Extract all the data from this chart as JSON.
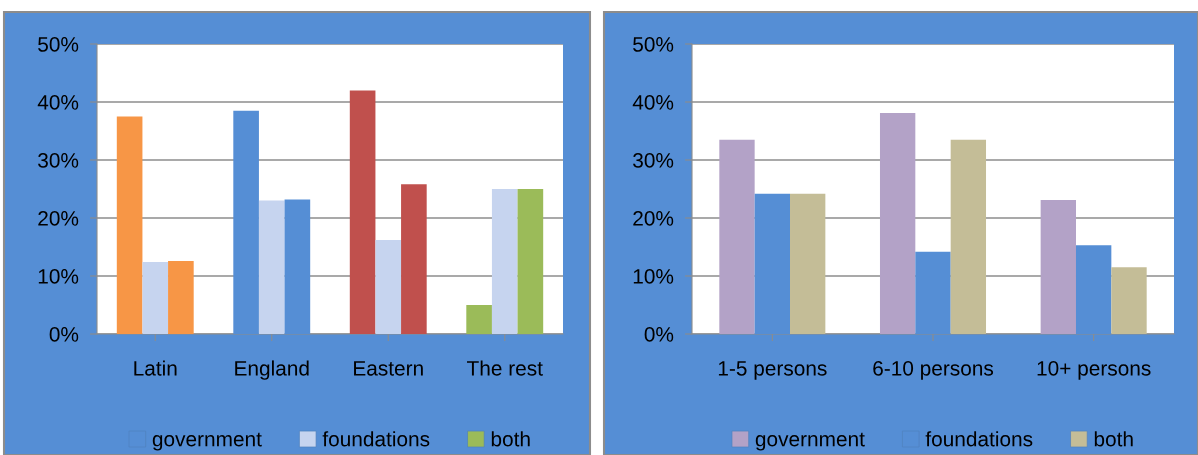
{
  "chart_data": [
    {
      "type": "bar",
      "categories": [
        "Latin",
        "England",
        "Eastern",
        "The rest"
      ],
      "series": [
        {
          "name": "government",
          "color": "#558ed5",
          "colors": [
            "#f79646",
            "#558ed5",
            "#c0504d",
            "#9bbb59"
          ],
          "values": [
            37.5,
            38.5,
            42.0,
            5.0
          ]
        },
        {
          "name": "foundations",
          "color": "#c6d4ef",
          "colors": [
            "#c6d4ef",
            "#c6d4ef",
            "#c6d4ef",
            "#c6d4ef"
          ],
          "values": [
            12.4,
            23.0,
            16.2,
            25.0
          ]
        },
        {
          "name": "both",
          "color": "#9bbb59",
          "colors": [
            "#f79646",
            "#558ed5",
            "#c0504d",
            "#9bbb59"
          ],
          "values": [
            12.6,
            23.2,
            25.8,
            25.0
          ]
        }
      ],
      "ylim": [
        0,
        50
      ],
      "yticks": [
        {
          "value": 0,
          "label": "0%"
        },
        {
          "value": 10,
          "label": "10%"
        },
        {
          "value": 20,
          "label": "20%"
        },
        {
          "value": 30,
          "label": "30%"
        },
        {
          "value": 40,
          "label": "40%"
        },
        {
          "value": 50,
          "label": "50%"
        }
      ],
      "grid": "y",
      "legend": "bottom"
    },
    {
      "type": "bar",
      "categories": [
        "1-5 persons",
        "6-10 persons",
        "10+ persons"
      ],
      "series": [
        {
          "name": "government",
          "color": "#b3a2c7",
          "values": [
            33.5,
            38.1,
            23.1
          ]
        },
        {
          "name": "foundations",
          "color": "#558ed5",
          "values": [
            24.2,
            14.2,
            15.3
          ]
        },
        {
          "name": "both",
          "color": "#c4bd97",
          "values": [
            24.2,
            33.5,
            11.5
          ]
        }
      ],
      "ylim": [
        0,
        50
      ],
      "yticks": [
        {
          "value": 0,
          "label": "0%"
        },
        {
          "value": 10,
          "label": "10%"
        },
        {
          "value": 20,
          "label": "20%"
        },
        {
          "value": 30,
          "label": "30%"
        },
        {
          "value": 40,
          "label": "40%"
        },
        {
          "value": 50,
          "label": "50%"
        }
      ],
      "grid": "y",
      "legend": "bottom"
    }
  ]
}
